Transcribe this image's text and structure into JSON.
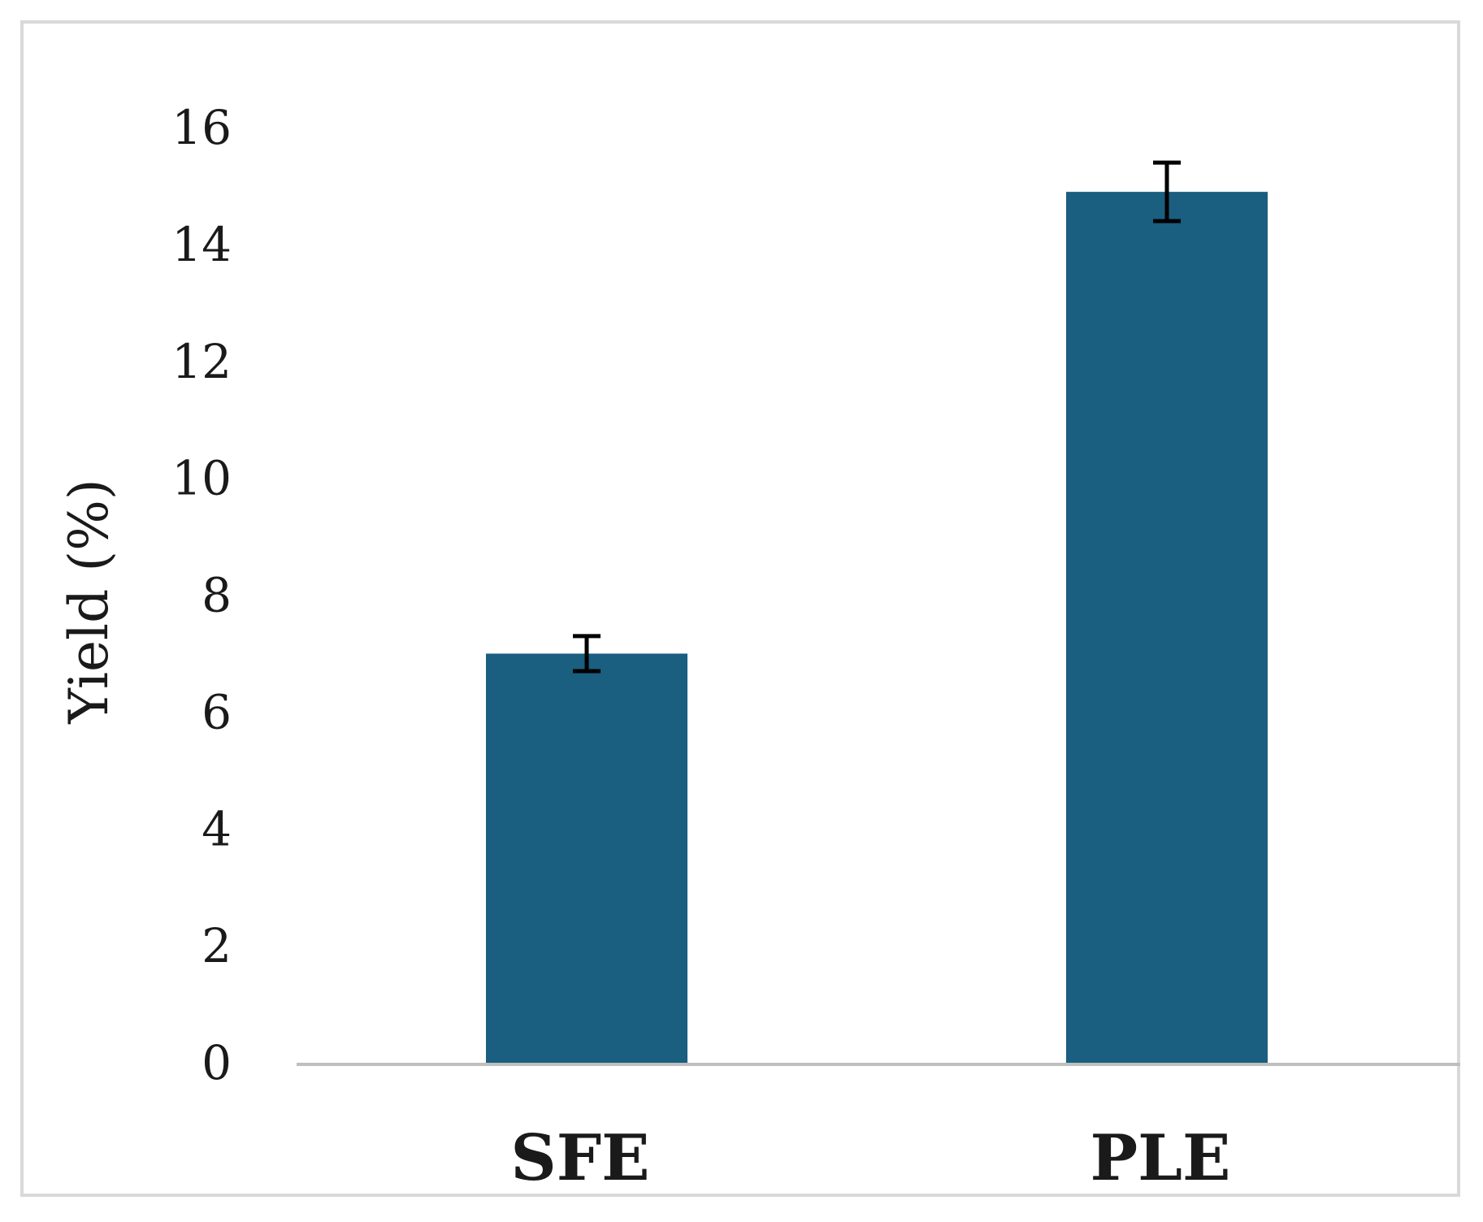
{
  "chart_data": {
    "type": "bar",
    "categories": [
      "SFE",
      "PLE"
    ],
    "values": [
      7.0,
      14.9
    ],
    "error": [
      0.3,
      0.5
    ],
    "title": "",
    "xlabel": "",
    "ylabel": "Yield (%)",
    "ylim": [
      0,
      16
    ],
    "yticks": [
      0,
      2,
      4,
      6,
      8,
      10,
      12,
      14,
      16
    ],
    "grid": false,
    "legend": "none",
    "bar_color": "#1a5e80",
    "error_color": "#000000",
    "axis_color": "#bfbfbf"
  }
}
